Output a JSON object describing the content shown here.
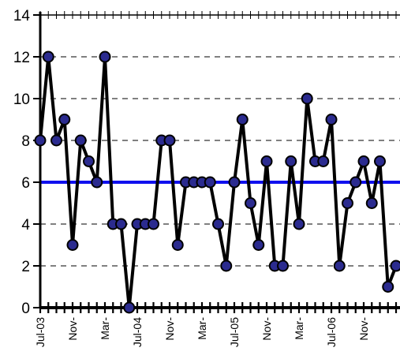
{
  "chart_data": {
    "type": "line",
    "title": "",
    "xlabel": "",
    "ylabel": "",
    "ylim": [
      0,
      14
    ],
    "y_ticks": [
      0,
      2,
      4,
      6,
      8,
      10,
      12,
      14
    ],
    "grid": {
      "horizontal": "dashed",
      "vertical": false
    },
    "legend": "none",
    "x_tick_labels": [
      {
        "index": 0,
        "label": "Jul-03"
      },
      {
        "index": 4,
        "label": "Nov-"
      },
      {
        "index": 8,
        "label": "Mar-"
      },
      {
        "index": 12,
        "label": "Jul-04"
      },
      {
        "index": 16,
        "label": "Nov-"
      },
      {
        "index": 20,
        "label": "Mar-"
      },
      {
        "index": 24,
        "label": "Jul-05"
      },
      {
        "index": 28,
        "label": "Nov-"
      },
      {
        "index": 32,
        "label": "Mar-"
      },
      {
        "index": 36,
        "label": "Jul-06"
      },
      {
        "index": 40,
        "label": "Nov-"
      }
    ],
    "series": [
      {
        "values": [
          8,
          12,
          8,
          9,
          3,
          8,
          7,
          6,
          12,
          4,
          4,
          0,
          4,
          4,
          4,
          8,
          8,
          3,
          6,
          6,
          6,
          6,
          4,
          2,
          6,
          9,
          5,
          3,
          7,
          2,
          2,
          7,
          4,
          10,
          7,
          7,
          9,
          2,
          5,
          6,
          7,
          5,
          7,
          1,
          2
        ],
        "color": "#000000",
        "marker_fill": "#2b2b8f"
      }
    ],
    "reference_line": {
      "value": 6,
      "color": "#1010ee"
    }
  }
}
